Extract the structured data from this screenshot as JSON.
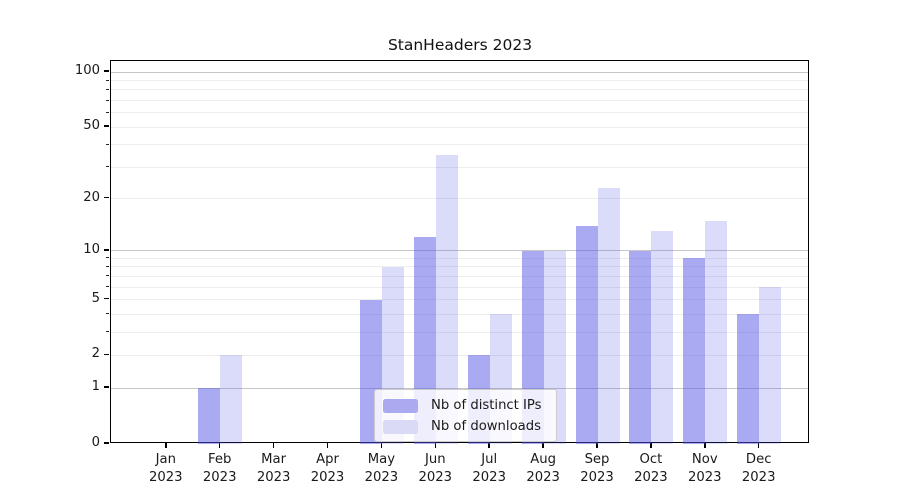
{
  "chart_data": {
    "type": "bar",
    "title": "StanHeaders 2023",
    "categories": [
      "Jan",
      "Feb",
      "Mar",
      "Apr",
      "May",
      "Jun",
      "Jul",
      "Aug",
      "Sep",
      "Oct",
      "Nov",
      "Dec"
    ],
    "year_label": "2023",
    "series": [
      {
        "name": "Nb of distinct IPs",
        "values": [
          0,
          1,
          0,
          0,
          5,
          12,
          2,
          10,
          14,
          10,
          9,
          4
        ],
        "fill": "rgba(85,85,230,0.50)",
        "swatch": "#abaaf0"
      },
      {
        "name": "Nb of downloads",
        "values": [
          0,
          2,
          0,
          0,
          8,
          35,
          4,
          10,
          23,
          13,
          15,
          6
        ],
        "fill": "rgba(85,85,230,0.21)",
        "swatch": "#dadaf6"
      }
    ],
    "yscale": "log1p",
    "ylim": [
      0,
      115
    ],
    "yticks": [
      0,
      1,
      2,
      5,
      10,
      20,
      50,
      100
    ],
    "major_gridlines": [
      1,
      10,
      100
    ],
    "minor_gridlines": [
      2,
      3,
      4,
      5,
      6,
      7,
      8,
      9,
      20,
      30,
      40,
      50,
      60,
      70,
      80,
      90
    ],
    "legend_position": "lower center",
    "grid_major_color": "#c6c6c6",
    "grid_minor_color": "#ededed",
    "axis_color": "#000000",
    "text_color": "#1a1a1a",
    "background_color": "#ffffff"
  }
}
